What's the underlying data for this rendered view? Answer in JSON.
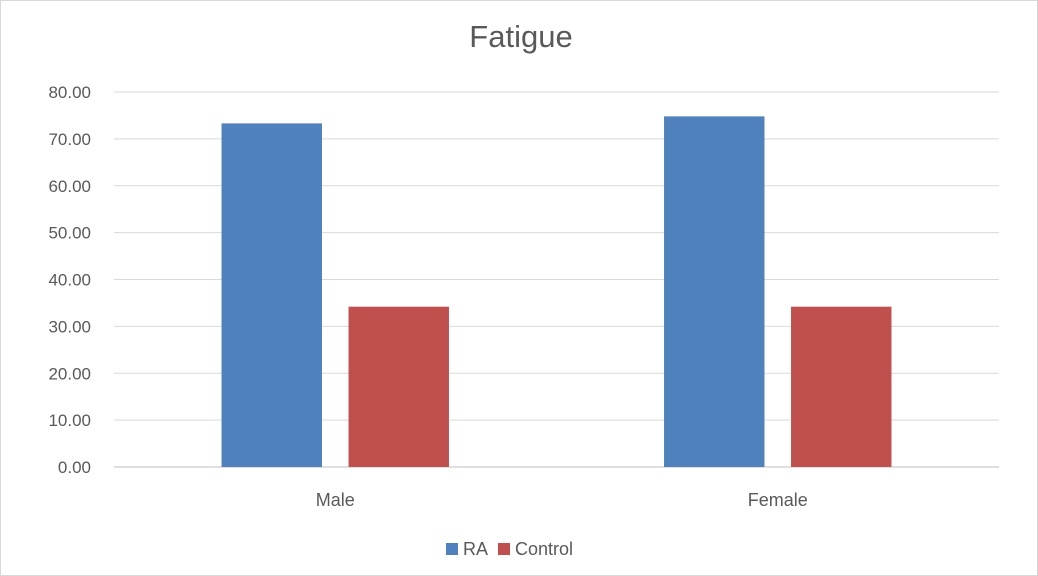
{
  "chart_data": {
    "type": "bar",
    "title": "Fatigue",
    "xlabel": "",
    "ylabel": "",
    "categories": [
      "Male",
      "Female"
    ],
    "series": [
      {
        "name": "RA",
        "values": [
          73.3,
          74.8
        ],
        "color": "#4f81bd"
      },
      {
        "name": "Control",
        "values": [
          34.2,
          34.2
        ],
        "color": "#c0504d"
      }
    ],
    "ylim": [
      0,
      80
    ],
    "yticks": [
      0,
      10,
      20,
      30,
      40,
      50,
      60,
      70,
      80
    ],
    "ytick_format_decimals": 2,
    "grid": true,
    "legend_position": "bottom"
  }
}
